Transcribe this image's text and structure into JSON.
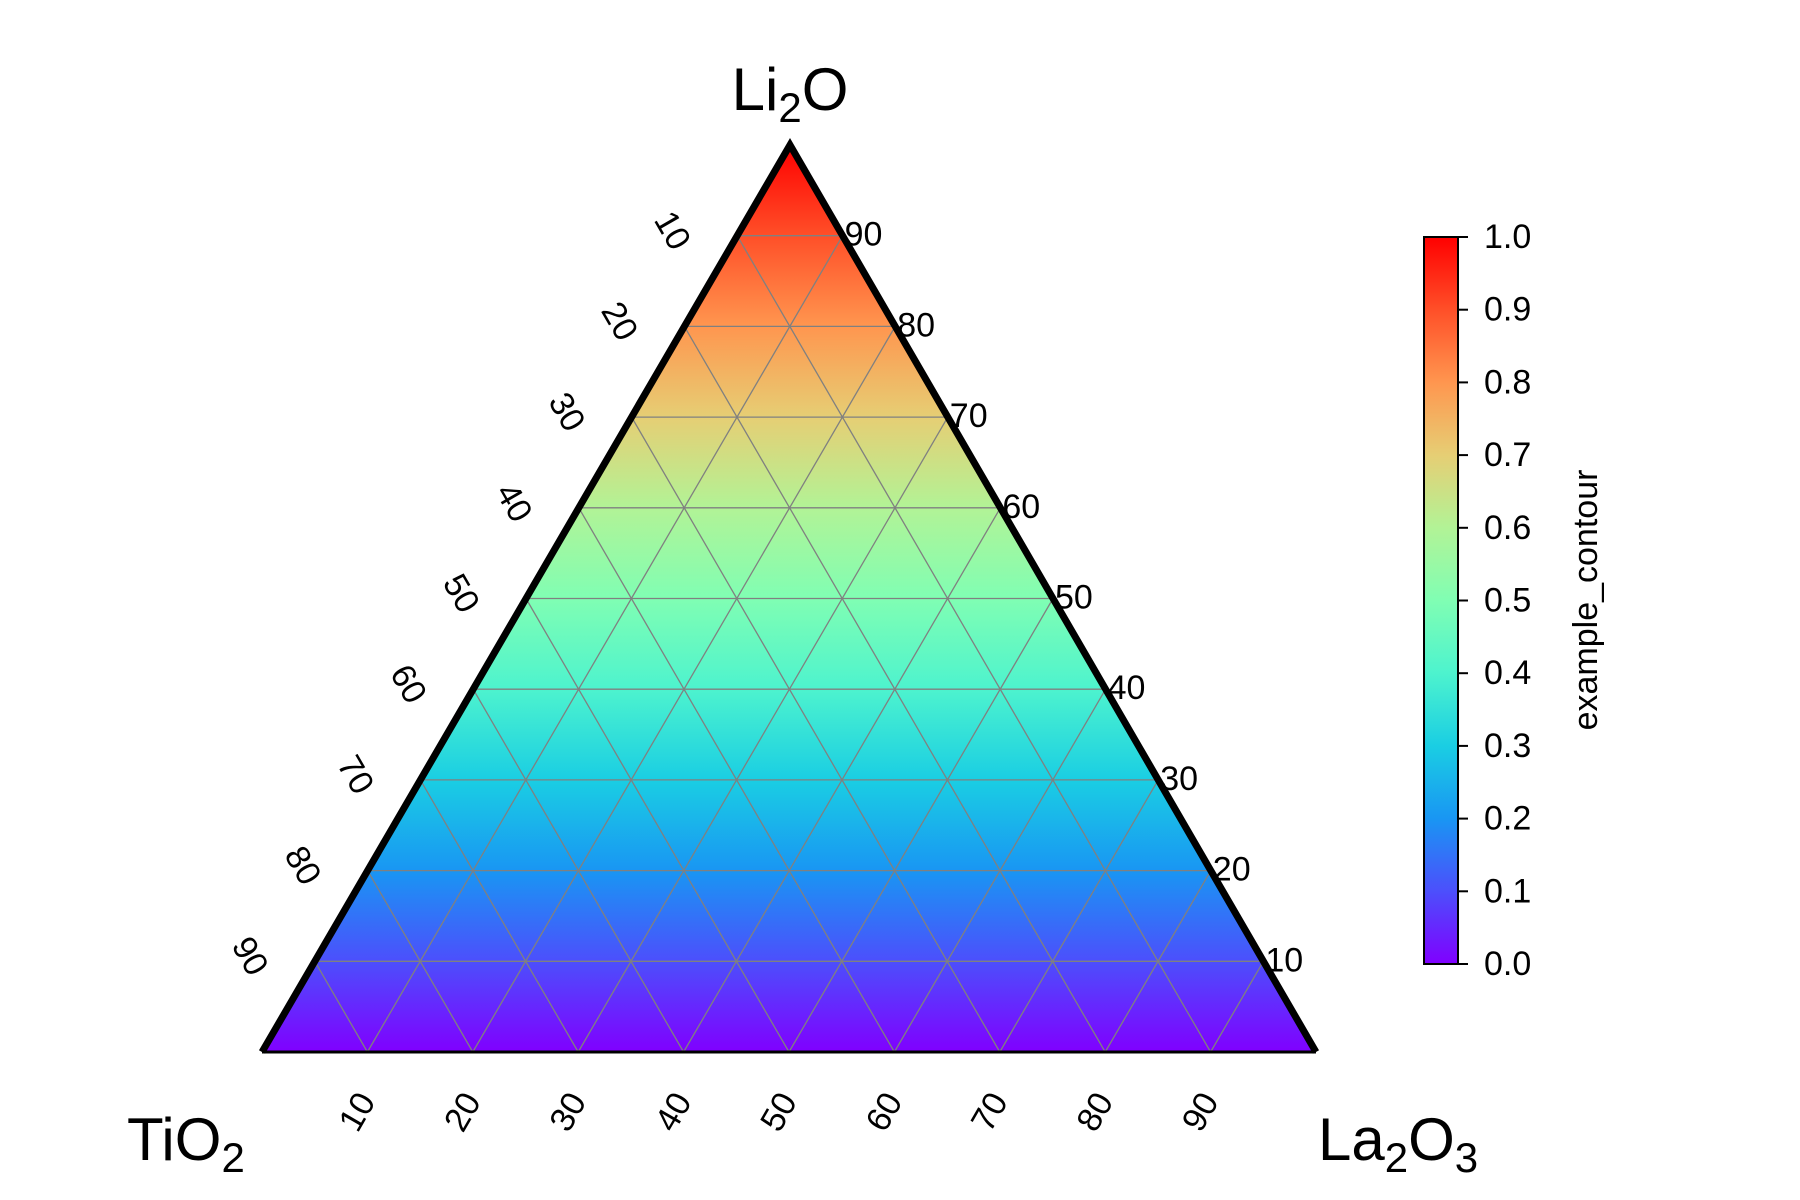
{
  "chart_data": {
    "type": "heatmap",
    "subtype": "ternary",
    "vertices": {
      "top": {
        "base": "Li",
        "sub": "2",
        "rest": "O",
        "sub2": ""
      },
      "left": {
        "base": "TiO",
        "sub": "2",
        "rest": "",
        "sub2": ""
      },
      "right": {
        "base": "La",
        "sub": "2",
        "rest": "O",
        "sub2": "3"
      }
    },
    "left_axis_ticks": [
      "10",
      "20",
      "30",
      "40",
      "50",
      "60",
      "70",
      "80",
      "90"
    ],
    "right_axis_ticks": [
      "10",
      "20",
      "30",
      "40",
      "50",
      "60",
      "70",
      "80",
      "90"
    ],
    "bottom_axis_ticks": [
      "10",
      "20",
      "30",
      "40",
      "50",
      "60",
      "70",
      "80",
      "90"
    ],
    "grid": true,
    "grid_step": 10,
    "colorbar": {
      "label": "example_contour",
      "ticks": [
        "0.0",
        "0.1",
        "0.2",
        "0.3",
        "0.4",
        "0.5",
        "0.6",
        "0.7",
        "0.8",
        "0.9",
        "1.0"
      ],
      "range": [
        0.0,
        1.0
      ],
      "colormap": "rainbow",
      "placement": "right"
    },
    "field": "value equals Li2O fraction (0 at bottom edge, 1 at top vertex)"
  }
}
